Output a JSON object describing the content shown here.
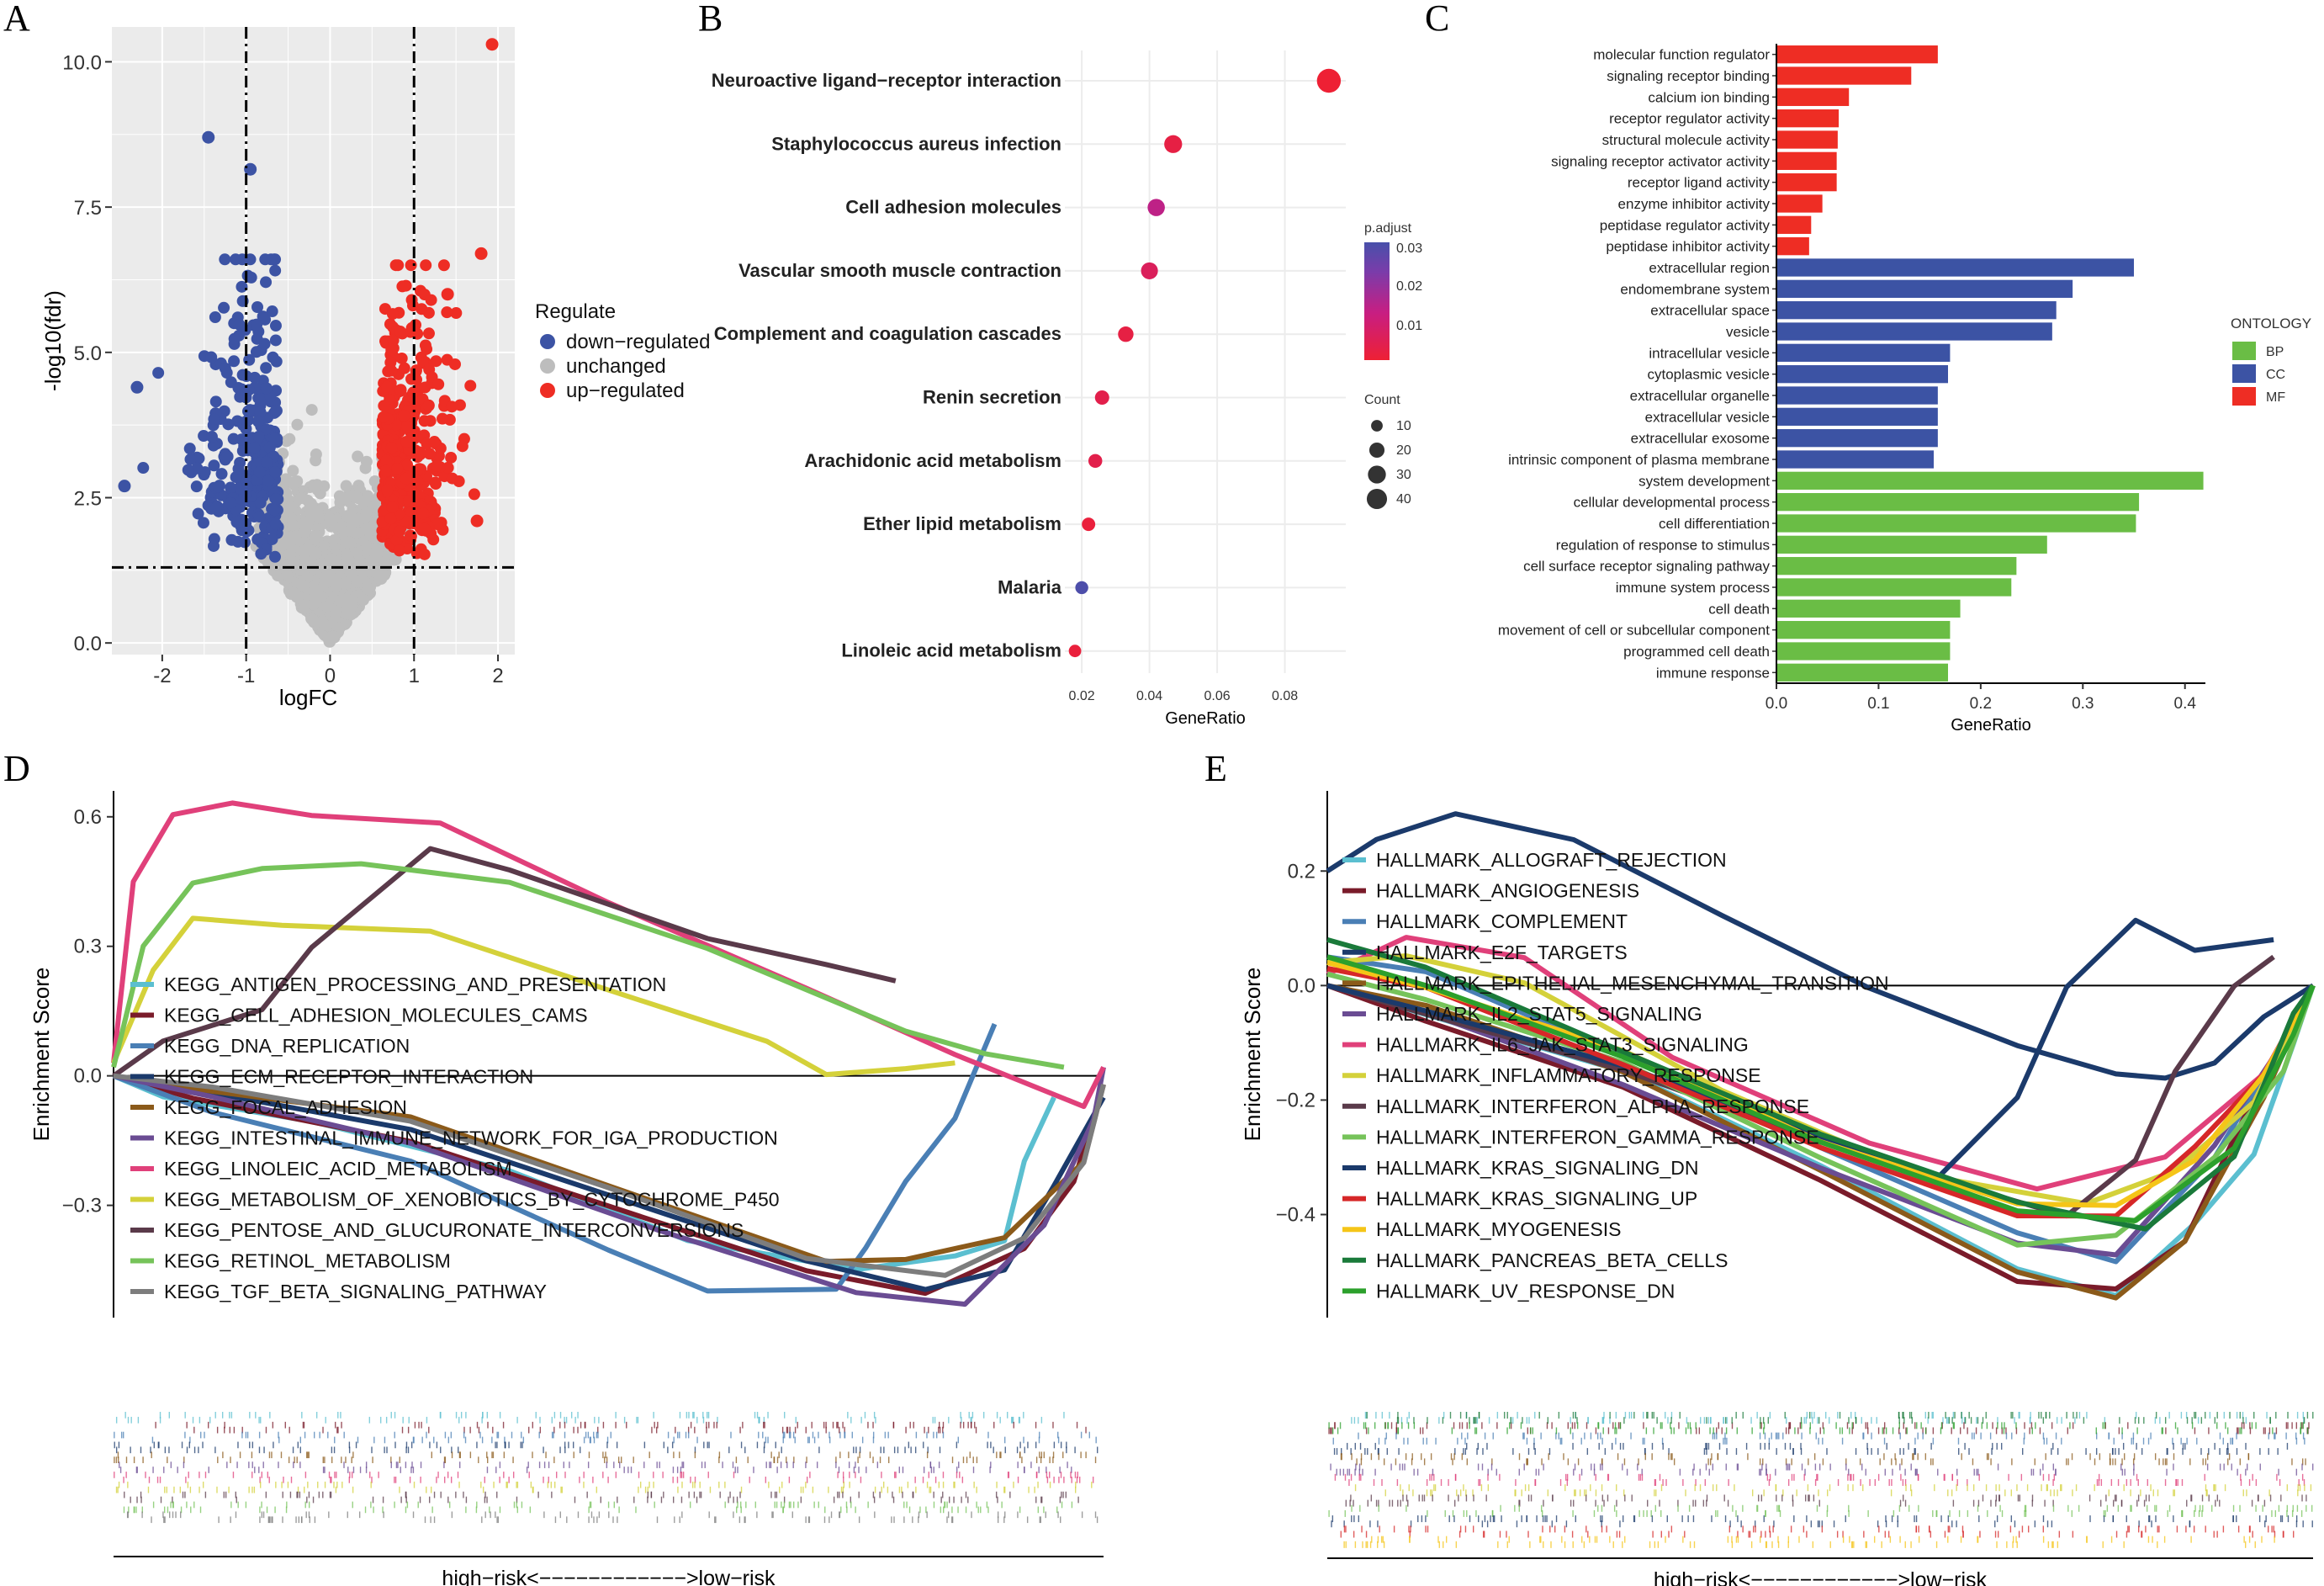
{
  "panel_labels": [
    "A",
    "B",
    "C",
    "D",
    "E"
  ],
  "chart_data": [
    {
      "panel": "A",
      "type": "scatter",
      "title": "",
      "xlabel": "logFC",
      "ylabel": "-log10(fdr)",
      "xlim": [
        -2.6,
        2.2
      ],
      "ylim": [
        -0.2,
        10.6
      ],
      "xticks": [
        "-2",
        "-1",
        "0",
        "1",
        "2"
      ],
      "yticks": [
        "0.0",
        "2.5",
        "5.0",
        "7.5",
        "10.0"
      ],
      "thresholds": {
        "logFC": [
          -1,
          1
        ],
        "fdr_line": 1.3
      },
      "legend_title": "Regulate",
      "legend": [
        {
          "name": "down−regulated",
          "color": "#3c53a4"
        },
        {
          "name": "unchanged",
          "color": "#bdbdbd"
        },
        {
          "name": "up−regulated",
          "color": "#ee2d24"
        }
      ],
      "highlight_points": [
        {
          "x": 1.93,
          "y": 10.3,
          "group": "up"
        },
        {
          "x": -1.45,
          "y": 8.7,
          "group": "down"
        },
        {
          "x": -0.95,
          "y": 8.15,
          "group": "down"
        },
        {
          "x": -2.3,
          "y": 4.4,
          "group": "down"
        },
        {
          "x": -2.45,
          "y": 2.7,
          "group": "down"
        },
        {
          "x": 1.8,
          "y": 6.7,
          "group": "up"
        },
        {
          "x": 1.4,
          "y": 6.0,
          "group": "up"
        },
        {
          "x": 1.75,
          "y": 2.1,
          "group": "up"
        }
      ]
    },
    {
      "panel": "B",
      "type": "scatter",
      "xlabel": "GeneRatio",
      "xticks": [
        "0.02",
        "0.04",
        "0.06",
        "0.08"
      ],
      "xlim": [
        0.015,
        0.098
      ],
      "categories": [
        "Neuroactive ligand−receptor interaction",
        "Staphylococcus aureus infection",
        "Cell adhesion molecules",
        "Vascular smooth muscle contraction",
        "Complement and coagulation cascades",
        "Renin secretion",
        "Arachidonic acid metabolism",
        "Ether lipid metabolism",
        "Malaria",
        "Linoleic acid metabolism"
      ],
      "gene_ratio": [
        0.093,
        0.047,
        0.042,
        0.04,
        0.033,
        0.026,
        0.024,
        0.022,
        0.02,
        0.018
      ],
      "count": [
        46,
        23,
        21,
        20,
        16,
        13,
        12,
        11,
        10,
        9
      ],
      "p_adjust": [
        0.001,
        0.003,
        0.012,
        0.006,
        0.003,
        0.004,
        0.004,
        0.002,
        0.03,
        0.002
      ],
      "color_legend_title": "p.adjust",
      "color_ticks": [
        "0.03",
        "0.02",
        "0.01"
      ],
      "size_legend_title": "Count",
      "size_ticks": [
        "10",
        "20",
        "30",
        "40"
      ]
    },
    {
      "panel": "C",
      "type": "bar",
      "xlabel": "GeneRatio",
      "xticks": [
        "0.0",
        "0.1",
        "0.2",
        "0.3",
        "0.4"
      ],
      "xlim": [
        0,
        0.42
      ],
      "legend_title": "ONTOLOGY",
      "legend": [
        {
          "name": "BP",
          "color": "#6abd45"
        },
        {
          "name": "CC",
          "color": "#3c53a4"
        },
        {
          "name": "MF",
          "color": "#ee2d24"
        }
      ],
      "categories": [
        "molecular function regulator",
        "signaling receptor binding",
        "calcium ion binding",
        "receptor regulator activity",
        "structural molecule activity",
        "signaling receptor activator activity",
        "receptor ligand activity",
        "enzyme inhibitor activity",
        "peptidase regulator activity",
        "peptidase inhibitor activity",
        "extracellular region",
        "endomembrane system",
        "extracellular space",
        "vesicle",
        "intracellular vesicle",
        "cytoplasmic vesicle",
        "extracellular organelle",
        "extracellular vesicle",
        "extracellular exosome",
        "intrinsic component of plasma membrane",
        "system development",
        "cellular developmental process",
        "cell differentiation",
        "regulation of response to stimulus",
        "cell surface receptor signaling pathway",
        "immune system process",
        "cell death",
        "movement of cell or subcellular component",
        "programmed cell death",
        "immune response"
      ],
      "values": [
        0.158,
        0.132,
        0.071,
        0.061,
        0.06,
        0.059,
        0.059,
        0.045,
        0.034,
        0.032,
        0.35,
        0.29,
        0.274,
        0.27,
        0.17,
        0.168,
        0.158,
        0.158,
        0.158,
        0.154,
        0.418,
        0.355,
        0.352,
        0.265,
        0.235,
        0.23,
        0.18,
        0.17,
        0.17,
        0.168
      ],
      "groups": [
        "MF",
        "MF",
        "MF",
        "MF",
        "MF",
        "MF",
        "MF",
        "MF",
        "MF",
        "MF",
        "CC",
        "CC",
        "CC",
        "CC",
        "CC",
        "CC",
        "CC",
        "CC",
        "CC",
        "CC",
        "BP",
        "BP",
        "BP",
        "BP",
        "BP",
        "BP",
        "BP",
        "BP",
        "BP",
        "BP"
      ]
    },
    {
      "panel": "D",
      "type": "line",
      "ylabel": "Enrichment Score",
      "xlabel": "high−risk<−−−−−−−−−−−−>low−risk",
      "yticks": [
        "0.6",
        "0.3",
        "0.0",
        "−0.3"
      ],
      "ylim": [
        -0.56,
        0.66
      ],
      "series": [
        {
          "name": "KEGG_ANTIGEN_PROCESSING_AND_PRESENTATION",
          "color": "#5bbfd0"
        },
        {
          "name": "KEGG_CELL_ADHESION_MOLECULES_CAMS",
          "color": "#7a1b2a"
        },
        {
          "name": "KEGG_DNA_REPLICATION",
          "color": "#4a7fb5"
        },
        {
          "name": "KEGG_ECM_RECEPTOR_INTERACTION",
          "color": "#1b3a6b"
        },
        {
          "name": "KEGG_FOCAL_ADHESION",
          "color": "#8b5a1a"
        },
        {
          "name": "KEGG_INTESTINAL_IMMUNE_NETWORK_FOR_IGA_PRODUCTION",
          "color": "#6a4c93"
        },
        {
          "name": "KEGG_LINOLEIC_ACID_METABOLISM",
          "color": "#e0407a"
        },
        {
          "name": "KEGG_METABOLISM_OF_XENOBIOTICS_BY_CYTOCHROME_P450",
          "color": "#d4d13a"
        },
        {
          "name": "KEGG_PENTOSE_AND_GLUCURONATE_INTERCONVERSIONS",
          "color": "#5a3a4a"
        },
        {
          "name": "KEGG_RETINOL_METABOLISM",
          "color": "#76c35a"
        },
        {
          "name": "KEGG_TGF_BETA_SIGNALING_PATHWAY",
          "color": "#7d7d7d"
        }
      ]
    },
    {
      "panel": "E",
      "type": "line",
      "ylabel": "Enrichment Score",
      "xlabel": "high−risk<−−−−−−−−−−−−>low−risk",
      "yticks": [
        "0.2",
        "0.0",
        "−0.2",
        "−0.4"
      ],
      "ylim": [
        -0.58,
        0.34
      ],
      "series": [
        {
          "name": "HALLMARK_ALLOGRAFT_REJECTION",
          "color": "#5bbfd0"
        },
        {
          "name": "HALLMARK_ANGIOGENESIS",
          "color": "#7a1b2a"
        },
        {
          "name": "HALLMARK_COMPLEMENT",
          "color": "#4a7fb5"
        },
        {
          "name": "HALLMARK_E2F_TARGETS",
          "color": "#1b3a6b"
        },
        {
          "name": "HALLMARK_EPITHELIAL_MESENCHYMAL_TRANSITION",
          "color": "#8b5a1a"
        },
        {
          "name": "HALLMARK_IL2_STAT5_SIGNALING",
          "color": "#6a4c93"
        },
        {
          "name": "HALLMARK_IL6_JAK_STAT3_SIGNALING",
          "color": "#e0407a"
        },
        {
          "name": "HALLMARK_INFLAMMATORY_RESPONSE",
          "color": "#d4d13a"
        },
        {
          "name": "HALLMARK_INTERFERON_ALPHA_RESPONSE",
          "color": "#5a3a4a"
        },
        {
          "name": "HALLMARK_INTERFERON_GAMMA_RESPONSE",
          "color": "#76c35a"
        },
        {
          "name": "HALLMARK_KRAS_SIGNALING_DN",
          "color": "#1b3a6b"
        },
        {
          "name": "HALLMARK_KRAS_SIGNALING_UP",
          "color": "#d62728"
        },
        {
          "name": "HALLMARK_MYOGENESIS",
          "color": "#f5c518"
        },
        {
          "name": "HALLMARK_PANCREAS_BETA_CELLS",
          "color": "#1a7a3a"
        },
        {
          "name": "HALLMARK_UV_RESPONSE_DN",
          "color": "#2ca02c"
        }
      ]
    }
  ]
}
